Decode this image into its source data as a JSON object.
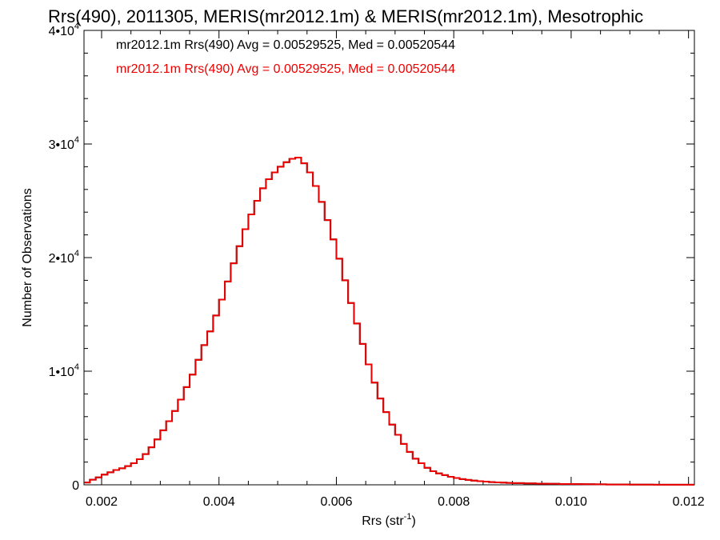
{
  "chart_data": {
    "type": "line",
    "title": "Rrs(490), 2011305, MERIS(mr2012.1m) & MERIS(mr2012.1m), Mesotrophic",
    "xlabel": "Rrs (str",
    "xlabel_sup": "-1",
    "xlabel_end": ")",
    "ylabel": "Number of Observations",
    "xlim": [
      0.0017,
      0.0121
    ],
    "ylim": [
      0,
      40000
    ],
    "x_ticks": [
      {
        "value": 0.002,
        "label": "0.002"
      },
      {
        "value": 0.004,
        "label": "0.004"
      },
      {
        "value": 0.006,
        "label": "0.006"
      },
      {
        "value": 0.008,
        "label": "0.008"
      },
      {
        "value": 0.01,
        "label": "0.010"
      },
      {
        "value": 0.012,
        "label": "0.012"
      }
    ],
    "y_ticks": [
      {
        "value": 0,
        "mant": "0",
        "exp": ""
      },
      {
        "value": 10000,
        "mant": "1•10",
        "exp": "4"
      },
      {
        "value": 20000,
        "mant": "2•10",
        "exp": "4"
      },
      {
        "value": 30000,
        "mant": "3•10",
        "exp": "4"
      },
      {
        "value": 40000,
        "mant": "4•10",
        "exp": "4"
      }
    ],
    "grid": false,
    "legend_position": "top-left",
    "annotations": [
      {
        "text": "mr2012.1m Rrs(490) Avg = 0.00529525, Med = 0.00520544",
        "color": "#000000"
      },
      {
        "text": "mr2012.1m Rrs(490) Avg = 0.00529525, Med = 0.00520544",
        "color": "#ee0000"
      }
    ],
    "series": [
      {
        "color": "#000000",
        "x": [
          0.0017,
          0.0018,
          0.0019,
          0.002,
          0.0021,
          0.0022,
          0.0023,
          0.0024,
          0.0025,
          0.0026,
          0.0027,
          0.0028,
          0.0029,
          0.003,
          0.0031,
          0.0032,
          0.0033,
          0.0034,
          0.0035,
          0.0036,
          0.0037,
          0.0038,
          0.0039,
          0.004,
          0.0041,
          0.0042,
          0.0043,
          0.0044,
          0.0045,
          0.0046,
          0.0047,
          0.0048,
          0.0049,
          0.005,
          0.0051,
          0.0052,
          0.0053,
          0.0054,
          0.0055,
          0.0056,
          0.0057,
          0.0058,
          0.0059,
          0.006,
          0.0061,
          0.0062,
          0.0063,
          0.0064,
          0.0065,
          0.0066,
          0.0067,
          0.0068,
          0.0069,
          0.007,
          0.0071,
          0.0072,
          0.0073,
          0.0074,
          0.0075,
          0.0076,
          0.0077,
          0.0078,
          0.0079,
          0.008,
          0.0081,
          0.0082,
          0.0083,
          0.0084,
          0.0085,
          0.0086,
          0.0087,
          0.0088,
          0.0089,
          0.009,
          0.0092,
          0.0094,
          0.0096,
          0.0098,
          0.01,
          0.0102,
          0.0104,
          0.0106,
          0.0108,
          0.011,
          0.0112,
          0.0114,
          0.0116,
          0.0118,
          0.012
        ],
        "y": [
          200,
          450,
          650,
          900,
          1100,
          1300,
          1450,
          1650,
          1900,
          2250,
          2700,
          3300,
          4000,
          4800,
          5600,
          6500,
          7500,
          8600,
          9700,
          11000,
          12300,
          13500,
          14900,
          16300,
          17900,
          19500,
          21000,
          22500,
          23800,
          25000,
          26100,
          26900,
          27500,
          28000,
          28400,
          28700,
          28800,
          28300,
          27500,
          26300,
          24900,
          23300,
          21600,
          19900,
          18000,
          16000,
          14200,
          12400,
          10600,
          9000,
          7600,
          6400,
          5300,
          4400,
          3600,
          2900,
          2300,
          1900,
          1500,
          1200,
          1000,
          850,
          700,
          600,
          500,
          430,
          370,
          320,
          280,
          240,
          210,
          190,
          170,
          150,
          120,
          100,
          85,
          70,
          60,
          50,
          40,
          30,
          25,
          20,
          15,
          12,
          10,
          8,
          5
        ]
      },
      {
        "color": "#ee0000",
        "x": [
          0.0017,
          0.0018,
          0.0019,
          0.002,
          0.0021,
          0.0022,
          0.0023,
          0.0024,
          0.0025,
          0.0026,
          0.0027,
          0.0028,
          0.0029,
          0.003,
          0.0031,
          0.0032,
          0.0033,
          0.0034,
          0.0035,
          0.0036,
          0.0037,
          0.0038,
          0.0039,
          0.004,
          0.0041,
          0.0042,
          0.0043,
          0.0044,
          0.0045,
          0.0046,
          0.0047,
          0.0048,
          0.0049,
          0.005,
          0.0051,
          0.0052,
          0.0053,
          0.0054,
          0.0055,
          0.0056,
          0.0057,
          0.0058,
          0.0059,
          0.006,
          0.0061,
          0.0062,
          0.0063,
          0.0064,
          0.0065,
          0.0066,
          0.0067,
          0.0068,
          0.0069,
          0.007,
          0.0071,
          0.0072,
          0.0073,
          0.0074,
          0.0075,
          0.0076,
          0.0077,
          0.0078,
          0.0079,
          0.008,
          0.0081,
          0.0082,
          0.0083,
          0.0084,
          0.0085,
          0.0086,
          0.0087,
          0.0088,
          0.0089,
          0.009,
          0.0092,
          0.0094,
          0.0096,
          0.0098,
          0.01,
          0.0102,
          0.0104,
          0.0106,
          0.0108,
          0.011,
          0.0112,
          0.0114,
          0.0116,
          0.0118,
          0.012
        ],
        "y": [
          200,
          450,
          650,
          900,
          1100,
          1300,
          1450,
          1650,
          1900,
          2250,
          2700,
          3300,
          4000,
          4800,
          5600,
          6500,
          7500,
          8600,
          9700,
          11000,
          12300,
          13500,
          14900,
          16300,
          17900,
          19500,
          21000,
          22500,
          23800,
          25000,
          26100,
          26900,
          27500,
          28000,
          28400,
          28700,
          28800,
          28300,
          27500,
          26300,
          24900,
          23300,
          21600,
          19900,
          18000,
          16000,
          14200,
          12400,
          10600,
          9000,
          7600,
          6400,
          5300,
          4400,
          3600,
          2900,
          2300,
          1900,
          1500,
          1200,
          1000,
          850,
          700,
          600,
          500,
          430,
          370,
          320,
          280,
          240,
          210,
          190,
          170,
          150,
          120,
          100,
          85,
          70,
          60,
          50,
          40,
          30,
          25,
          20,
          15,
          12,
          10,
          8,
          5
        ]
      }
    ]
  }
}
